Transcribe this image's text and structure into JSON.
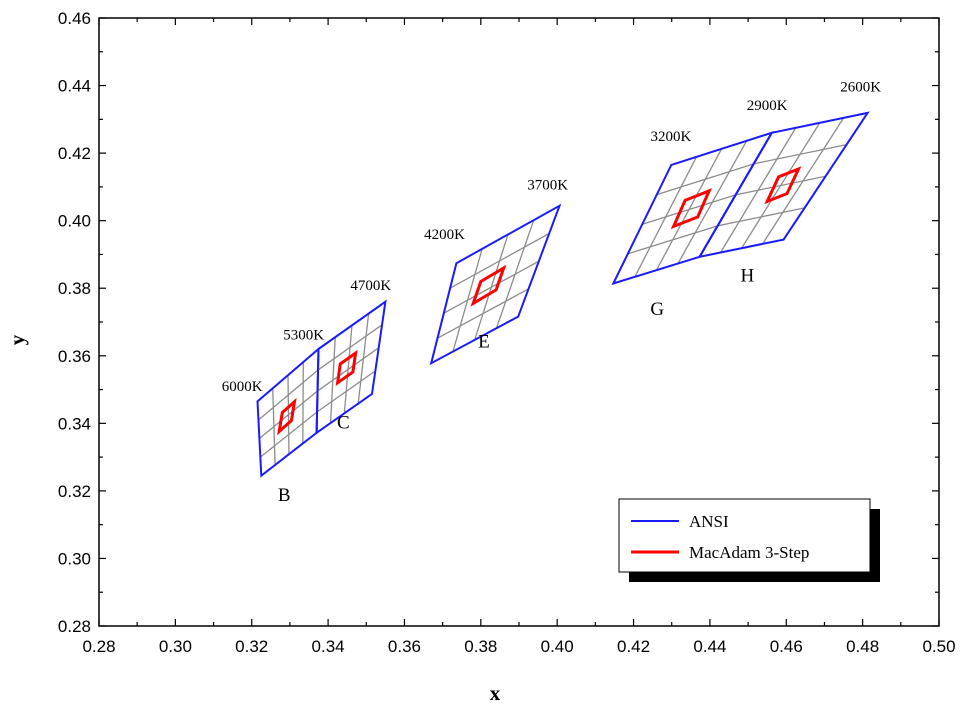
{
  "chart_data": {
    "type": "scatter",
    "title": "",
    "xlabel": "x",
    "ylabel": "y",
    "xlim": [
      0.28,
      0.5
    ],
    "ylim": [
      0.28,
      0.46
    ],
    "x_ticks": [
      "0.28",
      "0.30",
      "0.32",
      "0.34",
      "0.36",
      "0.38",
      "0.40",
      "0.42",
      "0.44",
      "0.46",
      "0.48",
      "0.50"
    ],
    "y_ticks": [
      "0.28",
      "0.30",
      "0.32",
      "0.34",
      "0.36",
      "0.38",
      "0.40",
      "0.42",
      "0.44",
      "0.46"
    ],
    "grid": false,
    "legend_position": "bottom-right",
    "colors": {
      "ansi": "#1a1aff",
      "macadam": "#ff0000",
      "grid": "#8c8c8c"
    },
    "legend": [
      {
        "label": "ANSI",
        "color": "#1a1aff"
      },
      {
        "label": "MacAdam 3-Step",
        "color": "#ff0000"
      }
    ],
    "cct_labels": [
      {
        "text": "6000K",
        "x": 0.3175,
        "y": 0.3495
      },
      {
        "text": "5300K",
        "x": 0.3336,
        "y": 0.3648
      },
      {
        "text": "4700K",
        "x": 0.3512,
        "y": 0.3795
      },
      {
        "text": "4200K",
        "x": 0.3705,
        "y": 0.3945
      },
      {
        "text": "3700K",
        "x": 0.3975,
        "y": 0.4092
      },
      {
        "text": "3200K",
        "x": 0.4298,
        "y": 0.4236
      },
      {
        "text": "2900K",
        "x": 0.455,
        "y": 0.4328
      },
      {
        "text": "2600K",
        "x": 0.4795,
        "y": 0.4382
      }
    ],
    "bins": [
      {
        "name": "B",
        "corners": [
          [
            0.3215,
            0.3465
          ],
          [
            0.3375,
            0.362
          ],
          [
            0.337,
            0.3372
          ],
          [
            0.3225,
            0.3245
          ]
        ],
        "macadam": [
          [
            0.3272,
            0.3376
          ],
          [
            0.328,
            0.3432
          ],
          [
            0.3312,
            0.3464
          ],
          [
            0.3304,
            0.3408
          ]
        ],
        "label_pos": [
          0.3285,
          0.317
        ]
      },
      {
        "name": "C",
        "corners": [
          [
            0.3375,
            0.362
          ],
          [
            0.355,
            0.376
          ],
          [
            0.3515,
            0.3487
          ],
          [
            0.337,
            0.3372
          ]
        ],
        "macadam": [
          [
            0.3425,
            0.352
          ],
          [
            0.3432,
            0.3576
          ],
          [
            0.3472,
            0.3608
          ],
          [
            0.3465,
            0.3552
          ]
        ],
        "label_pos": [
          0.344,
          0.3385
        ]
      },
      {
        "name": "E",
        "corners": [
          [
            0.3736,
            0.3874
          ],
          [
            0.4006,
            0.4044
          ],
          [
            0.3898,
            0.3716
          ],
          [
            0.367,
            0.3578
          ]
        ],
        "macadam": [
          [
            0.378,
            0.3755
          ],
          [
            0.38,
            0.382
          ],
          [
            0.386,
            0.386
          ],
          [
            0.384,
            0.3795
          ]
        ],
        "label_pos": [
          0.3808,
          0.3625
        ]
      },
      {
        "name": "G",
        "corners": [
          [
            0.4299,
            0.4165
          ],
          [
            0.4562,
            0.426
          ],
          [
            0.4373,
            0.3893
          ],
          [
            0.4147,
            0.3814
          ]
        ],
        "macadam": [
          [
            0.4305,
            0.3983
          ],
          [
            0.4335,
            0.406
          ],
          [
            0.4398,
            0.4088
          ],
          [
            0.4368,
            0.4011
          ]
        ],
        "label_pos": [
          0.4262,
          0.372
        ]
      },
      {
        "name": "H",
        "corners": [
          [
            0.4562,
            0.426
          ],
          [
            0.4813,
            0.4319
          ],
          [
            0.4593,
            0.3944
          ],
          [
            0.4373,
            0.3893
          ]
        ],
        "macadam": [
          [
            0.455,
            0.4057
          ],
          [
            0.458,
            0.413
          ],
          [
            0.4632,
            0.4153
          ],
          [
            0.4602,
            0.408
          ]
        ],
        "label_pos": [
          0.4498,
          0.382
        ]
      }
    ]
  }
}
